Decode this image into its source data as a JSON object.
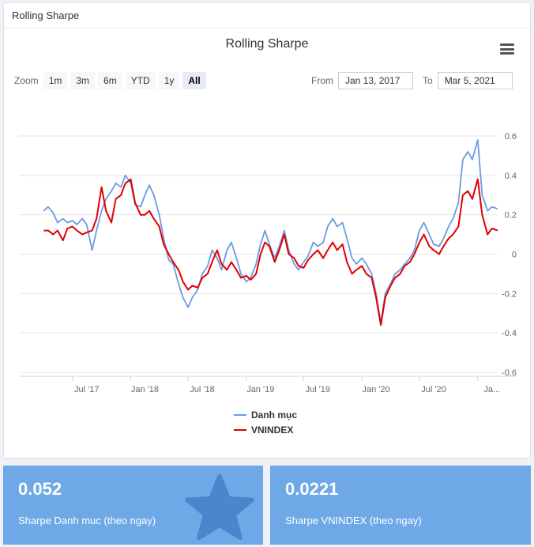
{
  "panel": {
    "header": "Rolling Sharpe"
  },
  "colors": {
    "series1": "#6b9be3",
    "series2": "#e00000",
    "card_bg": "#6ea8e6",
    "star": "#4a86cc"
  },
  "icons": {
    "menu": "hamburger-menu-icon",
    "card_star": "star-icon"
  },
  "toolbar": {
    "zoom_label": "Zoom",
    "zoom_buttons": [
      "1m",
      "3m",
      "6m",
      "YTD",
      "1y",
      "All"
    ],
    "active_zoom": "All",
    "from_label": "From",
    "from_value": "Jan 13, 2017",
    "to_label": "To",
    "to_value": "Mar 5, 2021"
  },
  "chart_data": {
    "type": "line",
    "title": "Rolling Sharpe",
    "xlabel": "",
    "ylabel": "",
    "ylim": [
      -0.6,
      0.6
    ],
    "y_ticks": [
      "0.6",
      "0.4",
      "0.2",
      "0",
      "-0.2",
      "-0.4",
      "-0.6"
    ],
    "x_ticks": [
      "Jul '17",
      "Jan '18",
      "Jul '18",
      "Jan '19",
      "Jul '19",
      "Jan '20",
      "Jul '20",
      "Ja..."
    ],
    "x_tick_dates": [
      "2017-07-01",
      "2018-01-01",
      "2018-07-01",
      "2019-01-01",
      "2019-07-01",
      "2020-01-01",
      "2020-07-01",
      "2021-01-01"
    ],
    "grid": true,
    "legend_position": "bottom-center",
    "series": [
      {
        "name": "Danh mục",
        "points": [
          [
            "2017-04-01",
            0.22
          ],
          [
            "2017-04-15",
            0.24
          ],
          [
            "2017-05-01",
            0.21
          ],
          [
            "2017-05-15",
            0.16
          ],
          [
            "2017-06-01",
            0.18
          ],
          [
            "2017-06-15",
            0.16
          ],
          [
            "2017-07-01",
            0.17
          ],
          [
            "2017-07-15",
            0.15
          ],
          [
            "2017-08-01",
            0.18
          ],
          [
            "2017-08-15",
            0.15
          ],
          [
            "2017-09-01",
            0.02
          ],
          [
            "2017-09-15",
            0.12
          ],
          [
            "2017-10-01",
            0.22
          ],
          [
            "2017-10-15",
            0.28
          ],
          [
            "2017-11-01",
            0.32
          ],
          [
            "2017-11-15",
            0.36
          ],
          [
            "2017-12-01",
            0.34
          ],
          [
            "2017-12-15",
            0.4
          ],
          [
            "2018-01-01",
            0.36
          ],
          [
            "2018-01-15",
            0.25
          ],
          [
            "2018-02-01",
            0.24
          ],
          [
            "2018-02-15",
            0.3
          ],
          [
            "2018-03-01",
            0.35
          ],
          [
            "2018-03-15",
            0.3
          ],
          [
            "2018-04-01",
            0.2
          ],
          [
            "2018-04-15",
            0.08
          ],
          [
            "2018-05-01",
            -0.03
          ],
          [
            "2018-05-15",
            -0.05
          ],
          [
            "2018-06-01",
            -0.15
          ],
          [
            "2018-06-15",
            -0.22
          ],
          [
            "2018-07-01",
            -0.27
          ],
          [
            "2018-07-15",
            -0.22
          ],
          [
            "2018-08-01",
            -0.18
          ],
          [
            "2018-08-15",
            -0.1
          ],
          [
            "2018-09-01",
            -0.06
          ],
          [
            "2018-09-15",
            0.02
          ],
          [
            "2018-10-01",
            -0.02
          ],
          [
            "2018-10-15",
            -0.08
          ],
          [
            "2018-11-01",
            0.02
          ],
          [
            "2018-11-15",
            0.06
          ],
          [
            "2018-12-01",
            -0.02
          ],
          [
            "2018-12-15",
            -0.1
          ],
          [
            "2019-01-01",
            -0.14
          ],
          [
            "2019-01-15",
            -0.12
          ],
          [
            "2019-02-01",
            -0.05
          ],
          [
            "2019-02-15",
            0.05
          ],
          [
            "2019-03-01",
            0.12
          ],
          [
            "2019-03-15",
            0.05
          ],
          [
            "2019-04-01",
            -0.02
          ],
          [
            "2019-04-15",
            0.04
          ],
          [
            "2019-05-01",
            0.12
          ],
          [
            "2019-05-15",
            0.02
          ],
          [
            "2019-06-01",
            -0.05
          ],
          [
            "2019-06-15",
            -0.08
          ],
          [
            "2019-07-01",
            -0.04
          ],
          [
            "2019-07-15",
            -0.01
          ],
          [
            "2019-08-01",
            0.06
          ],
          [
            "2019-08-15",
            0.04
          ],
          [
            "2019-09-01",
            0.06
          ],
          [
            "2019-09-15",
            0.14
          ],
          [
            "2019-10-01",
            0.18
          ],
          [
            "2019-10-15",
            0.14
          ],
          [
            "2019-11-01",
            0.16
          ],
          [
            "2019-11-15",
            0.08
          ],
          [
            "2019-12-01",
            -0.02
          ],
          [
            "2019-12-15",
            -0.05
          ],
          [
            "2020-01-01",
            -0.02
          ],
          [
            "2020-01-15",
            -0.05
          ],
          [
            "2020-02-01",
            -0.1
          ],
          [
            "2020-02-15",
            -0.2
          ],
          [
            "2020-03-01",
            -0.35
          ],
          [
            "2020-03-15",
            -0.2
          ],
          [
            "2020-04-01",
            -0.15
          ],
          [
            "2020-04-15",
            -0.1
          ],
          [
            "2020-05-01",
            -0.08
          ],
          [
            "2020-05-15",
            -0.05
          ],
          [
            "2020-06-01",
            -0.02
          ],
          [
            "2020-06-15",
            0.02
          ],
          [
            "2020-07-01",
            0.12
          ],
          [
            "2020-07-15",
            0.16
          ],
          [
            "2020-08-01",
            0.1
          ],
          [
            "2020-08-15",
            0.05
          ],
          [
            "2020-09-01",
            0.04
          ],
          [
            "2020-09-15",
            0.08
          ],
          [
            "2020-10-01",
            0.14
          ],
          [
            "2020-10-15",
            0.18
          ],
          [
            "2020-11-01",
            0.26
          ],
          [
            "2020-11-15",
            0.48
          ],
          [
            "2020-12-01",
            0.52
          ],
          [
            "2020-12-15",
            0.48
          ],
          [
            "2021-01-01",
            0.58
          ],
          [
            "2021-01-15",
            0.3
          ],
          [
            "2021-02-01",
            0.22
          ],
          [
            "2021-02-15",
            0.24
          ],
          [
            "2021-03-05",
            0.23
          ]
        ]
      },
      {
        "name": "VNINDEX",
        "points": [
          [
            "2017-04-01",
            0.12
          ],
          [
            "2017-04-15",
            0.12
          ],
          [
            "2017-05-01",
            0.1
          ],
          [
            "2017-05-15",
            0.12
          ],
          [
            "2017-06-01",
            0.07
          ],
          [
            "2017-06-15",
            0.13
          ],
          [
            "2017-07-01",
            0.14
          ],
          [
            "2017-07-15",
            0.12
          ],
          [
            "2017-08-01",
            0.1
          ],
          [
            "2017-08-15",
            0.11
          ],
          [
            "2017-09-01",
            0.12
          ],
          [
            "2017-09-15",
            0.18
          ],
          [
            "2017-10-01",
            0.34
          ],
          [
            "2017-10-15",
            0.22
          ],
          [
            "2017-11-01",
            0.16
          ],
          [
            "2017-11-15",
            0.28
          ],
          [
            "2017-12-01",
            0.3
          ],
          [
            "2017-12-15",
            0.36
          ],
          [
            "2018-01-01",
            0.38
          ],
          [
            "2018-01-15",
            0.26
          ],
          [
            "2018-02-01",
            0.2
          ],
          [
            "2018-02-15",
            0.2
          ],
          [
            "2018-03-01",
            0.22
          ],
          [
            "2018-03-15",
            0.18
          ],
          [
            "2018-04-01",
            0.14
          ],
          [
            "2018-04-15",
            0.05
          ],
          [
            "2018-05-01",
            0.0
          ],
          [
            "2018-05-15",
            -0.04
          ],
          [
            "2018-06-01",
            -0.08
          ],
          [
            "2018-06-15",
            -0.14
          ],
          [
            "2018-07-01",
            -0.18
          ],
          [
            "2018-07-15",
            -0.16
          ],
          [
            "2018-08-01",
            -0.17
          ],
          [
            "2018-08-15",
            -0.12
          ],
          [
            "2018-09-01",
            -0.1
          ],
          [
            "2018-09-15",
            -0.04
          ],
          [
            "2018-10-01",
            0.02
          ],
          [
            "2018-10-15",
            -0.05
          ],
          [
            "2018-11-01",
            -0.08
          ],
          [
            "2018-11-15",
            -0.04
          ],
          [
            "2018-12-01",
            -0.08
          ],
          [
            "2018-12-15",
            -0.12
          ],
          [
            "2019-01-01",
            -0.11
          ],
          [
            "2019-01-15",
            -0.13
          ],
          [
            "2019-02-01",
            -0.1
          ],
          [
            "2019-02-15",
            0.0
          ],
          [
            "2019-03-01",
            0.06
          ],
          [
            "2019-03-15",
            0.04
          ],
          [
            "2019-04-01",
            -0.04
          ],
          [
            "2019-04-15",
            0.02
          ],
          [
            "2019-05-01",
            0.1
          ],
          [
            "2019-05-15",
            0.0
          ],
          [
            "2019-06-01",
            -0.02
          ],
          [
            "2019-06-15",
            -0.06
          ],
          [
            "2019-07-01",
            -0.07
          ],
          [
            "2019-07-15",
            -0.03
          ],
          [
            "2019-08-01",
            0.0
          ],
          [
            "2019-08-15",
            0.02
          ],
          [
            "2019-09-01",
            -0.02
          ],
          [
            "2019-09-15",
            0.02
          ],
          [
            "2019-10-01",
            0.06
          ],
          [
            "2019-10-15",
            0.02
          ],
          [
            "2019-11-01",
            0.05
          ],
          [
            "2019-11-15",
            -0.04
          ],
          [
            "2019-12-01",
            -0.1
          ],
          [
            "2019-12-15",
            -0.08
          ],
          [
            "2020-01-01",
            -0.06
          ],
          [
            "2020-01-15",
            -0.1
          ],
          [
            "2020-02-01",
            -0.12
          ],
          [
            "2020-02-15",
            -0.22
          ],
          [
            "2020-03-01",
            -0.36
          ],
          [
            "2020-03-15",
            -0.22
          ],
          [
            "2020-04-01",
            -0.16
          ],
          [
            "2020-04-15",
            -0.12
          ],
          [
            "2020-05-01",
            -0.1
          ],
          [
            "2020-05-15",
            -0.06
          ],
          [
            "2020-06-01",
            -0.04
          ],
          [
            "2020-06-15",
            0.0
          ],
          [
            "2020-07-01",
            0.06
          ],
          [
            "2020-07-15",
            0.1
          ],
          [
            "2020-08-01",
            0.04
          ],
          [
            "2020-08-15",
            0.02
          ],
          [
            "2020-09-01",
            0.0
          ],
          [
            "2020-09-15",
            0.04
          ],
          [
            "2020-10-01",
            0.08
          ],
          [
            "2020-10-15",
            0.1
          ],
          [
            "2020-11-01",
            0.14
          ],
          [
            "2020-11-15",
            0.3
          ],
          [
            "2020-12-01",
            0.32
          ],
          [
            "2020-12-15",
            0.28
          ],
          [
            "2021-01-01",
            0.38
          ],
          [
            "2021-01-15",
            0.2
          ],
          [
            "2021-02-01",
            0.1
          ],
          [
            "2021-02-15",
            0.13
          ],
          [
            "2021-03-05",
            0.12
          ]
        ]
      }
    ]
  },
  "cards": [
    {
      "value": "0.052",
      "label": "Sharpe Danh muc (theo ngay)"
    },
    {
      "value": "0.0221",
      "label": "Sharpe VNINDEX (theo ngay)"
    }
  ]
}
